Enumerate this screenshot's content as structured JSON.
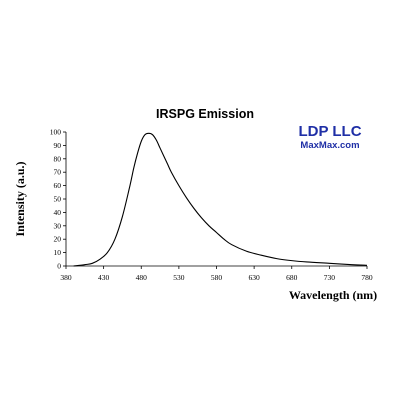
{
  "chart_data": {
    "type": "line",
    "title": "IRSPG Emission",
    "xlabel": "Wavelength (nm)",
    "ylabel": "Intensity (a.u.)",
    "xlim": [
      380,
      780
    ],
    "ylim": [
      0,
      100
    ],
    "xticks": [
      "380",
      "430",
      "480",
      "530",
      "580",
      "630",
      "680",
      "730",
      "780"
    ],
    "yticks": [
      "0",
      "10",
      "20",
      "30",
      "40",
      "50",
      "60",
      "70",
      "80",
      "90",
      "100"
    ],
    "grid": false,
    "series": [
      {
        "x": [
          390,
          405,
          415,
          425,
          435,
          445,
          455,
          465,
          470,
          475,
          480,
          485,
          490,
          495,
          500,
          505,
          510,
          515,
          520,
          530,
          540,
          550,
          560,
          570,
          580,
          590,
          600,
          620,
          640,
          660,
          680,
          700,
          730,
          760,
          780
        ],
        "values": [
          0,
          1,
          2,
          5,
          10,
          20,
          37,
          60,
          73,
          84,
          93,
          98,
          99,
          98,
          94,
          88,
          82,
          76,
          70,
          60,
          51,
          43,
          36,
          30,
          25,
          20,
          16,
          11,
          8,
          5.5,
          4,
          3,
          2,
          1,
          0.5
        ]
      }
    ]
  },
  "brand": {
    "name": "LDP LLC",
    "site": "MaxMax.com",
    "name_color": "#1f2fa6",
    "site_color": "#1f2fa6"
  }
}
